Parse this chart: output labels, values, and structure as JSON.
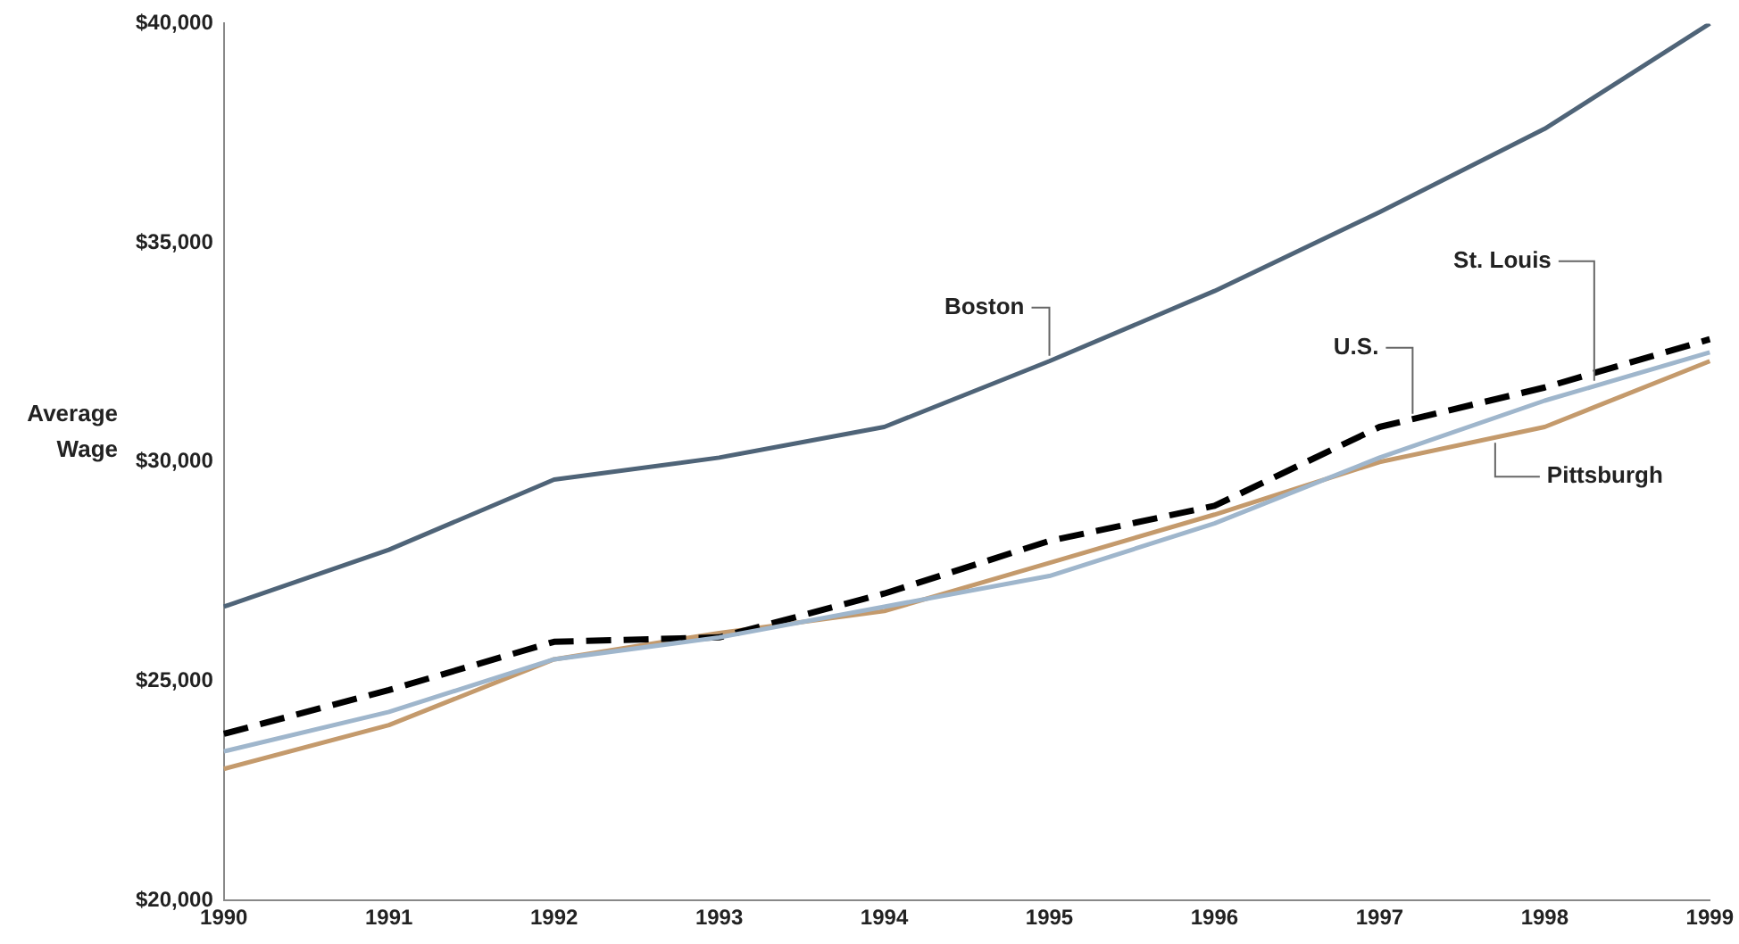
{
  "chart_data": {
    "type": "line",
    "ylabel": "Average Wage",
    "categories": [
      "1990",
      "1991",
      "1992",
      "1993",
      "1994",
      "1995",
      "1996",
      "1997",
      "1998",
      "1999"
    ],
    "series": [
      {
        "name": "Boston",
        "color": "#4f6478",
        "values": [
          26700,
          28000,
          29600,
          30100,
          30800,
          32300,
          33900,
          35700,
          37600,
          40000
        ]
      },
      {
        "name": "St. Louis",
        "color": "#9fb6cc",
        "values": [
          23400,
          24300,
          25500,
          26000,
          26700,
          27400,
          28600,
          30100,
          31400,
          32500
        ]
      },
      {
        "name": "U.S.",
        "color": "#000000",
        "line_style": "dashed",
        "values": [
          23800,
          24800,
          25900,
          26000,
          27000,
          28200,
          29000,
          30800,
          31700,
          32800
        ]
      },
      {
        "name": "Pittsburgh",
        "color": "#c49a6c",
        "values": [
          23000,
          24000,
          25500,
          26100,
          26600,
          27700,
          28800,
          30000,
          30800,
          32300
        ]
      }
    ],
    "ylim": [
      20000,
      40000
    ],
    "yticks": [
      {
        "value": 20000,
        "label": "$20,000"
      },
      {
        "value": 25000,
        "label": "$25,000"
      },
      {
        "value": 30000,
        "label": "$30,000"
      },
      {
        "value": 35000,
        "label": "$35,000"
      },
      {
        "value": 40000,
        "label": "$40,000"
      }
    ],
    "grid": false,
    "legend": false,
    "marker": "none"
  }
}
